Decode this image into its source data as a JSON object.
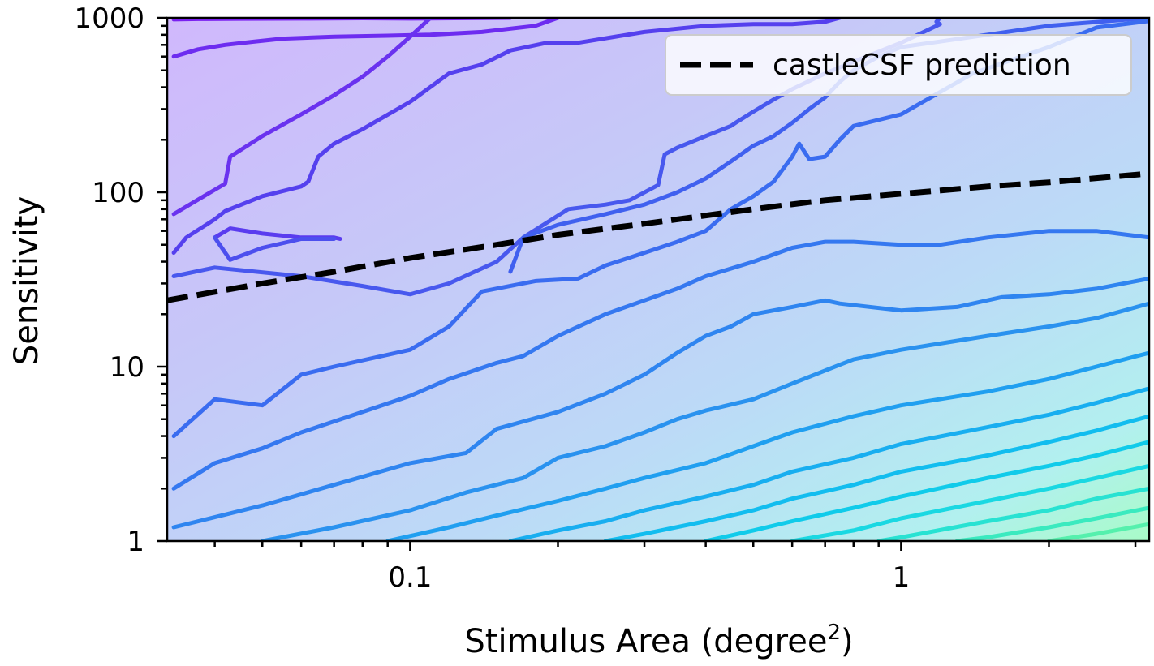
{
  "chart_data": {
    "type": "contour",
    "xlabel": "Stimulus Area (degree",
    "xlabel_superscript": "2",
    "xlabel_suffix": ")",
    "ylabel": "Sensitivity",
    "xscale": "log",
    "yscale": "log",
    "xlim": [
      0.032,
      3.2
    ],
    "ylim": [
      1,
      1000
    ],
    "x_ticks": [
      {
        "value": 0.1,
        "label": "0.1"
      },
      {
        "value": 1,
        "label": "1"
      }
    ],
    "y_ticks": [
      {
        "value": 1,
        "label": "1"
      },
      {
        "value": 10,
        "label": "10"
      },
      {
        "value": 100,
        "label": "100"
      },
      {
        "value": 1000,
        "label": "1000"
      }
    ],
    "legend": {
      "position": "top-right",
      "entries": [
        {
          "label": "castleCSF prediction",
          "style": "dashed",
          "color": "#000000"
        }
      ]
    },
    "prediction": {
      "name": "castleCSF prediction",
      "x": [
        0.032,
        0.05,
        0.07,
        0.1,
        0.15,
        0.2,
        0.3,
        0.5,
        0.7,
        1.0,
        1.5,
        2.0,
        3.2
      ],
      "y": [
        24,
        30,
        35,
        42,
        50,
        57,
        66,
        80,
        90,
        98,
        108,
        114,
        128
      ]
    },
    "contours": [
      {
        "color": "#7a20f0",
        "x": [
          0.033,
          0.037,
          0.045,
          0.06,
          0.08,
          0.1,
          0.16
        ],
        "y": [
          980,
          985,
          988,
          990,
          995,
          990,
          1000
        ]
      },
      {
        "color": "#6d2cf0",
        "x": [
          0.033,
          0.037,
          0.042,
          0.048,
          0.055,
          0.07,
          0.09,
          0.11,
          0.14,
          0.18,
          0.2
        ],
        "y": [
          600,
          660,
          700,
          730,
          760,
          780,
          790,
          800,
          830,
          900,
          1000
        ]
      },
      {
        "color": "#6a32ef",
        "x": [
          0.033,
          0.038,
          0.042,
          0.043,
          0.05,
          0.06,
          0.07,
          0.08,
          0.09,
          0.1,
          0.11
        ],
        "y": [
          75,
          95,
          112,
          160,
          210,
          280,
          360,
          460,
          600,
          780,
          1000
        ]
      },
      {
        "color": "#5540ee",
        "x": [
          0.033,
          0.035,
          0.04,
          0.042,
          0.05,
          0.06,
          0.062,
          0.065,
          0.07,
          0.08,
          0.1,
          0.12,
          0.14,
          0.16,
          0.19,
          0.22,
          0.3,
          0.4,
          0.5,
          0.6,
          0.7,
          0.75
        ],
        "y": [
          45,
          55,
          70,
          78,
          95,
          108,
          115,
          160,
          190,
          230,
          330,
          480,
          540,
          650,
          720,
          720,
          830,
          900,
          920,
          920,
          950,
          1000
        ]
      },
      {
        "color": "#5a3cef",
        "x": [
          0.04,
          0.043,
          0.05,
          0.06,
          0.07,
          0.072
        ],
        "y": [
          55,
          62,
          58,
          55,
          55,
          54
        ]
      },
      {
        "color": "#4c4fee",
        "x": [
          0.04,
          0.043,
          0.05,
          0.06,
          0.07
        ],
        "y": [
          55,
          41,
          48,
          54,
          54
        ]
      },
      {
        "color": "#4858ee",
        "x": [
          0.033,
          0.04,
          0.06,
          0.08,
          0.1,
          0.12,
          0.15,
          0.17,
          0.21,
          0.25,
          0.28,
          0.32,
          0.33,
          0.35,
          0.4,
          0.45,
          0.46,
          0.5,
          0.55,
          0.6,
          0.7,
          0.8,
          1.0,
          1.2,
          1.18,
          1.2
        ],
        "y": [
          33,
          37,
          33,
          29,
          26,
          30,
          40,
          55,
          80,
          85,
          90,
          110,
          165,
          180,
          210,
          240,
          250,
          290,
          340,
          390,
          480,
          560,
          720,
          920,
          950,
          1000
        ]
      },
      {
        "color": "#4060ef",
        "x": [
          0.16,
          0.17,
          0.2,
          0.25,
          0.3,
          0.35,
          0.4,
          0.45,
          0.5,
          0.55,
          0.6,
          0.65,
          0.7,
          0.75,
          0.8,
          0.9,
          1.0,
          1.5,
          2.0,
          3.2
        ],
        "y": [
          35,
          55,
          65,
          75,
          85,
          100,
          120,
          150,
          185,
          210,
          250,
          300,
          350,
          430,
          500,
          600,
          680,
          800,
          900,
          1000
        ]
      },
      {
        "color": "#3a6cf0",
        "x": [
          0.033,
          0.04,
          0.05,
          0.06,
          0.07,
          0.1,
          0.12,
          0.14,
          0.18,
          0.22,
          0.25,
          0.3,
          0.35,
          0.4,
          0.45,
          0.5,
          0.55,
          0.6,
          0.62,
          0.65,
          0.7,
          0.75,
          0.8,
          1.0,
          1.4,
          2.0,
          2.5,
          3.2
        ],
        "y": [
          4,
          6.5,
          6,
          9,
          10,
          12.5,
          17,
          27,
          31,
          32,
          38,
          45,
          52,
          60,
          80,
          95,
          115,
          160,
          190,
          155,
          160,
          200,
          240,
          280,
          480,
          680,
          880,
          960
        ]
      },
      {
        "color": "#3578f0",
        "x": [
          0.033,
          0.04,
          0.05,
          0.06,
          0.08,
          0.1,
          0.12,
          0.15,
          0.17,
          0.2,
          0.25,
          0.3,
          0.35,
          0.4,
          0.5,
          0.6,
          0.65,
          0.7,
          0.8,
          1.0,
          1.2,
          1.5,
          2.0,
          2.5,
          3.2
        ],
        "y": [
          2,
          2.8,
          3.4,
          4.2,
          5.5,
          6.8,
          8.5,
          10.5,
          11.5,
          15,
          20,
          24,
          28,
          33,
          40,
          48,
          50,
          52,
          52,
          50,
          50,
          55,
          60,
          60,
          55
        ]
      },
      {
        "color": "#2f85f0",
        "x": [
          0.033,
          0.05,
          0.07,
          0.1,
          0.13,
          0.15,
          0.2,
          0.25,
          0.3,
          0.35,
          0.4,
          0.45,
          0.5,
          0.6,
          0.7,
          0.75,
          1.0,
          1.3,
          1.6,
          2.0,
          2.5,
          3.2
        ],
        "y": [
          1.2,
          1.6,
          2.1,
          2.8,
          3.2,
          4.4,
          5.5,
          7,
          9,
          12,
          15,
          17,
          20,
          22,
          24,
          23,
          21,
          22,
          25,
          26,
          28,
          32
        ]
      },
      {
        "color": "#2a92ef",
        "x": [
          0.05,
          0.07,
          0.1,
          0.13,
          0.17,
          0.2,
          0.25,
          0.3,
          0.35,
          0.4,
          0.5,
          0.6,
          0.7,
          0.8,
          1.0,
          1.5,
          2.0,
          2.5,
          3.2
        ],
        "y": [
          1,
          1.2,
          1.5,
          1.9,
          2.3,
          3,
          3.5,
          4.2,
          5,
          5.6,
          6.5,
          8,
          9.5,
          11,
          12.5,
          15,
          17,
          19,
          23
        ]
      },
      {
        "color": "#209ff0",
        "x": [
          0.09,
          0.12,
          0.15,
          0.2,
          0.25,
          0.3,
          0.4,
          0.5,
          0.6,
          0.8,
          1.0,
          1.5,
          2.0,
          2.5,
          3.2
        ],
        "y": [
          1,
          1.2,
          1.4,
          1.7,
          2,
          2.3,
          2.8,
          3.5,
          4.2,
          5.2,
          6,
          7.2,
          8.5,
          10,
          12
        ]
      },
      {
        "color": "#18aef0",
        "x": [
          0.16,
          0.2,
          0.25,
          0.3,
          0.4,
          0.5,
          0.6,
          0.8,
          1.0,
          1.5,
          2.0,
          2.5,
          3.2
        ],
        "y": [
          1,
          1.15,
          1.3,
          1.5,
          1.8,
          2.1,
          2.5,
          3,
          3.6,
          4.5,
          5.3,
          6.2,
          7.5
        ]
      },
      {
        "color": "#12bdef",
        "x": [
          0.25,
          0.3,
          0.4,
          0.5,
          0.6,
          0.8,
          1.0,
          1.5,
          2.0,
          2.5,
          3.2
        ],
        "y": [
          1,
          1.1,
          1.3,
          1.5,
          1.75,
          2.1,
          2.5,
          3.1,
          3.7,
          4.3,
          5.2
        ]
      },
      {
        "color": "#10cbea",
        "x": [
          0.4,
          0.5,
          0.6,
          0.8,
          1.0,
          1.5,
          2.0,
          2.5,
          3.2
        ],
        "y": [
          1,
          1.15,
          1.3,
          1.55,
          1.8,
          2.3,
          2.7,
          3.1,
          3.7
        ]
      },
      {
        "color": "#1ad8e2",
        "x": [
          0.6,
          0.8,
          1.0,
          1.5,
          2.0,
          2.5,
          3.2
        ],
        "y": [
          1,
          1.15,
          1.35,
          1.7,
          2,
          2.3,
          2.7
        ]
      },
      {
        "color": "#28e2d2",
        "x": [
          0.9,
          1.0,
          1.5,
          2.0,
          2.5,
          3.2
        ],
        "y": [
          1,
          1.05,
          1.3,
          1.5,
          1.75,
          2
        ]
      },
      {
        "color": "#3aeabf",
        "x": [
          1.3,
          1.5,
          2.0,
          2.5,
          3.2
        ],
        "y": [
          1,
          1.05,
          1.2,
          1.35,
          1.55
        ]
      },
      {
        "color": "#55f0ad",
        "x": [
          2.0,
          2.5,
          3.2
        ],
        "y": [
          1,
          1.1,
          1.25
        ]
      }
    ],
    "grid": false
  }
}
